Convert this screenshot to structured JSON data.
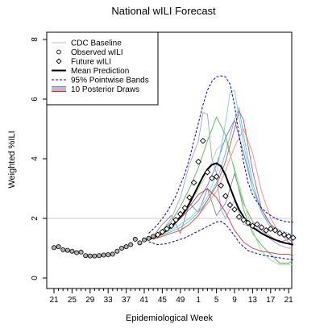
{
  "chart_data": {
    "type": "line",
    "title": "National wILI Forecast",
    "xlabel": "Epidemiological Week",
    "ylabel": "Weighted %ILI",
    "xlim": [
      -0.5,
      53.5
    ],
    "ylim": [
      0,
      8
    ],
    "x_ticks": [
      0,
      4,
      8,
      12,
      16,
      20,
      24,
      28,
      32,
      36,
      40,
      44,
      48,
      52
    ],
    "x_tick_labels": [
      "21",
      "25",
      "29",
      "33",
      "37",
      "41",
      "45",
      "49",
      "1",
      "5",
      "9",
      "13",
      "17",
      "21"
    ],
    "minor_x_ticks": [
      1,
      2,
      3,
      5,
      6,
      7,
      9,
      10,
      11,
      13,
      14,
      15,
      17,
      18,
      19,
      21,
      22,
      23,
      25,
      26,
      27,
      29,
      30,
      31,
      33,
      34,
      35,
      37,
      38,
      39,
      41,
      42,
      43,
      45,
      46,
      47,
      49,
      50,
      51
    ],
    "y_ticks": [
      0,
      2,
      4,
      6,
      8
    ],
    "cdc_baseline": 2.0,
    "legend": {
      "position": "top-left",
      "entries": [
        {
          "label": "CDC Baseline",
          "kind": "line",
          "color": "#bbbbbb"
        },
        {
          "label": "Observed wILI",
          "kind": "circle"
        },
        {
          "label": "Future wILI",
          "kind": "diamond"
        },
        {
          "label": "Mean Prediction",
          "kind": "line",
          "color": "#000000"
        },
        {
          "label": "95% Pointwise Bands",
          "kind": "dash",
          "color": "#0000cc"
        },
        {
          "label": "10 Posterior Draws",
          "kind": "multi",
          "colors": [
            "#888888",
            "#a89be6",
            "#7fc7ee",
            "#f08a8a",
            "#c23b3b"
          ]
        }
      ]
    },
    "observed": {
      "x": [
        0,
        1,
        2,
        3,
        4,
        5,
        6,
        7,
        8,
        9,
        10,
        11,
        12,
        13,
        14,
        15,
        16,
        17,
        18,
        19,
        20,
        21,
        22
      ],
      "y": [
        1.02,
        1.05,
        0.95,
        0.93,
        0.9,
        0.85,
        0.87,
        0.75,
        0.74,
        0.74,
        0.75,
        0.77,
        0.78,
        0.8,
        0.9,
        1.0,
        1.05,
        1.12,
        1.3,
        1.18,
        1.28,
        1.33,
        1.4
      ]
    },
    "future": {
      "x": [
        23,
        24,
        25,
        26,
        27,
        28,
        29,
        30,
        31,
        32,
        33,
        34,
        35,
        36,
        37,
        38,
        39,
        40,
        41,
        42,
        43,
        44,
        45,
        46,
        47,
        48,
        49,
        50,
        51,
        52,
        53
      ],
      "y": [
        1.45,
        1.55,
        1.65,
        1.75,
        1.95,
        2.15,
        2.35,
        2.7,
        3.2,
        3.9,
        4.6,
        3.55,
        3.35,
        3.4,
        3.1,
        2.75,
        2.45,
        2.3,
        2.05,
        1.95,
        1.85,
        1.75,
        1.8,
        1.7,
        1.6,
        1.65,
        1.6,
        1.5,
        1.45,
        1.4,
        1.35
      ]
    },
    "mean_prediction": {
      "x": [
        20,
        21,
        22,
        23,
        24,
        25,
        26,
        27,
        28,
        29,
        30,
        31,
        32,
        33,
        34,
        35,
        36,
        37,
        38,
        39,
        40,
        41,
        42,
        43,
        44,
        45,
        46,
        47,
        48,
        49,
        50,
        51,
        52,
        53
      ],
      "y": [
        1.28,
        1.3,
        1.35,
        1.42,
        1.5,
        1.6,
        1.72,
        1.88,
        2.05,
        2.25,
        2.5,
        2.8,
        3.1,
        3.4,
        3.65,
        3.8,
        3.85,
        3.75,
        3.45,
        3.05,
        2.65,
        2.3,
        2.05,
        1.85,
        1.7,
        1.6,
        1.5,
        1.42,
        1.35,
        1.28,
        1.23,
        1.18,
        1.15,
        1.12
      ]
    },
    "upper_band": {
      "x": [
        21,
        23,
        25,
        27,
        29,
        30,
        31,
        32,
        33,
        34,
        35,
        36,
        37,
        38,
        39,
        40,
        41,
        42,
        43,
        44,
        45,
        46,
        47,
        48,
        49,
        50,
        51,
        52,
        53
      ],
      "y": [
        1.5,
        1.8,
        2.2,
        2.75,
        3.5,
        4.0,
        4.6,
        5.2,
        5.8,
        6.3,
        6.6,
        6.75,
        6.78,
        6.75,
        6.5,
        5.8,
        4.8,
        3.9,
        3.2,
        2.8,
        2.55,
        2.35,
        2.2,
        2.1,
        2.0,
        1.95,
        1.9,
        1.88,
        1.87
      ]
    },
    "lower_band": {
      "x": [
        21,
        23,
        25,
        27,
        29,
        31,
        33,
        35,
        36,
        37,
        38,
        39,
        40,
        41,
        42,
        43,
        45,
        47,
        49,
        51,
        53
      ],
      "y": [
        1.22,
        1.12,
        1.15,
        1.25,
        1.35,
        1.5,
        1.65,
        1.8,
        1.88,
        1.9,
        1.8,
        1.62,
        1.42,
        1.2,
        1.05,
        0.92,
        0.82,
        0.75,
        0.7,
        0.65,
        0.62
      ]
    },
    "posterior_draws": [
      {
        "color": "#888888",
        "x": [
          22,
          24,
          26,
          28,
          30,
          32,
          34,
          36,
          38,
          40,
          42,
          44,
          46,
          48,
          50,
          52,
          53
        ],
        "y": [
          1.4,
          1.8,
          2.1,
          1.5,
          2.5,
          2.2,
          3.0,
          2.1,
          2.5,
          3.5,
          2.5,
          1.9,
          1.6,
          1.4,
          1.2,
          1.3,
          1.2
        ]
      },
      {
        "color": "#a89be6",
        "x": [
          22,
          24,
          26,
          28,
          30,
          32,
          33,
          34,
          35,
          36,
          37,
          38,
          40,
          42,
          44,
          46,
          48,
          50,
          52,
          53
        ],
        "y": [
          1.4,
          1.6,
          2.0,
          2.7,
          3.8,
          4.6,
          5.55,
          5.5,
          4.0,
          3.5,
          2.3,
          2.0,
          2.6,
          1.8,
          1.7,
          1.6,
          1.3,
          1.1,
          1.0,
          1.0
        ]
      },
      {
        "color": "#6f6fd0",
        "x": [
          22,
          24,
          26,
          28,
          30,
          32,
          34,
          36,
          38,
          40,
          42,
          44,
          46,
          48,
          50,
          52,
          53
        ],
        "y": [
          1.35,
          1.5,
          1.7,
          2.0,
          2.3,
          2.6,
          3.1,
          3.8,
          4.7,
          5.3,
          4.2,
          3.0,
          2.3,
          1.8,
          1.5,
          1.3,
          1.2
        ]
      },
      {
        "color": "#7fc7ee",
        "x": [
          22,
          24,
          26,
          28,
          30,
          32,
          34,
          36,
          38,
          39,
          40,
          42,
          44,
          46,
          48,
          50,
          52,
          53
        ],
        "y": [
          1.4,
          1.5,
          1.6,
          1.8,
          2.0,
          2.3,
          2.7,
          3.5,
          5.2,
          6.2,
          6.3,
          4.5,
          3.0,
          2.2,
          1.8,
          1.6,
          1.5,
          1.4
        ]
      },
      {
        "color": "#4cc4d8",
        "x": [
          22,
          24,
          26,
          28,
          30,
          32,
          34,
          36,
          38,
          40,
          41,
          42,
          44,
          46,
          48,
          50,
          52,
          53
        ],
        "y": [
          1.35,
          1.45,
          1.55,
          1.7,
          1.9,
          2.2,
          2.6,
          3.2,
          4.2,
          5.3,
          5.7,
          4.8,
          3.2,
          2.2,
          1.7,
          1.5,
          1.4,
          1.3
        ]
      },
      {
        "color": "#53b553",
        "x": [
          22,
          24,
          26,
          28,
          30,
          32,
          34,
          36,
          38,
          40,
          42,
          44,
          46,
          48,
          50,
          52,
          53
        ],
        "y": [
          1.4,
          1.6,
          1.9,
          2.4,
          3.0,
          3.7,
          4.6,
          5.4,
          4.8,
          3.6,
          2.3,
          1.5,
          1.1,
          0.8,
          0.5,
          0.5,
          0.6
        ]
      },
      {
        "color": "#9adf9a",
        "x": [
          22,
          24,
          26,
          28,
          30,
          32,
          34,
          36,
          38,
          40,
          42,
          44,
          46,
          48,
          50,
          52,
          53
        ],
        "y": [
          1.3,
          1.45,
          1.65,
          2.0,
          2.45,
          3.0,
          3.5,
          4.3,
          4.6,
          3.7,
          2.6,
          1.6,
          0.9,
          0.6,
          0.45,
          0.45,
          0.45
        ]
      },
      {
        "color": "#f08a8a",
        "x": [
          22,
          24,
          26,
          28,
          30,
          32,
          34,
          36,
          38,
          40,
          42,
          44,
          46,
          48,
          50,
          52,
          53
        ],
        "y": [
          1.3,
          1.4,
          1.5,
          1.6,
          1.8,
          2.1,
          2.5,
          2.9,
          3.6,
          4.4,
          5.0,
          4.2,
          2.9,
          2.0,
          1.5,
          1.2,
          1.1
        ]
      },
      {
        "color": "#e44e4e",
        "x": [
          22,
          24,
          26,
          28,
          30,
          32,
          34,
          36,
          38,
          40,
          41,
          42,
          44,
          46,
          48,
          50,
          52,
          53
        ],
        "y": [
          1.3,
          1.4,
          1.5,
          1.6,
          1.8,
          2.1,
          2.6,
          3.1,
          3.9,
          5.0,
          5.6,
          5.3,
          3.6,
          2.3,
          1.8,
          1.5,
          1.4,
          1.3
        ]
      },
      {
        "color": "#c23b3b",
        "x": [
          22,
          24,
          26,
          28,
          30,
          32,
          34,
          36,
          38,
          40,
          42,
          44,
          46,
          48,
          50,
          52,
          53
        ],
        "y": [
          1.35,
          1.5,
          1.7,
          2.0,
          2.4,
          2.8,
          3.0,
          2.7,
          2.2,
          1.6,
          1.2,
          1.0,
          0.9,
          0.85,
          0.8,
          0.8,
          0.75
        ]
      }
    ]
  }
}
